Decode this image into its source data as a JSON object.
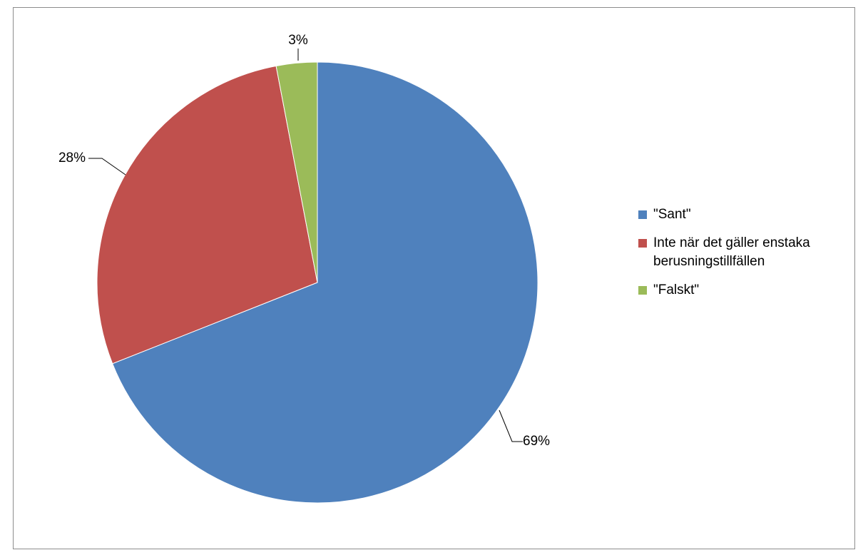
{
  "chart_data": {
    "type": "pie",
    "start_angle_deg": 0,
    "direction": "clockwise",
    "legend_position": "right",
    "slices": [
      {
        "label": "\"Sant\"",
        "value": 69,
        "value_label": "69%",
        "color": "#4F81BD"
      },
      {
        "label": "Inte när det gäller enstaka berusningstillfällen",
        "value": 28,
        "value_label": "28%",
        "color": "#C0504D"
      },
      {
        "label": "\"Falskt\"",
        "value": 3,
        "value_label": "3%",
        "color": "#9BBB59"
      }
    ]
  }
}
